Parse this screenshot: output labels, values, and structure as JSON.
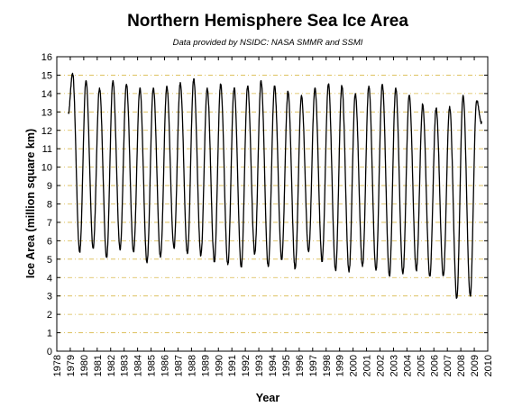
{
  "chart_data": {
    "type": "line",
    "title": "Northern Hemisphere Sea Ice Area",
    "subtitle": "Data provided by NSIDC: NASA SMMR and SSMI",
    "xlabel": "Year",
    "ylabel": "Ice Area (million square km)",
    "xlim": [
      1978,
      2010
    ],
    "ylim": [
      0,
      16
    ],
    "x_ticks": [
      1978,
      1979,
      1980,
      1981,
      1982,
      1983,
      1984,
      1985,
      1986,
      1987,
      1988,
      1989,
      1990,
      1991,
      1992,
      1993,
      1994,
      1995,
      1996,
      1997,
      1998,
      1999,
      2000,
      2001,
      2002,
      2003,
      2004,
      2005,
      2006,
      2007,
      2008,
      2009,
      2010
    ],
    "y_ticks": [
      0,
      1,
      2,
      3,
      4,
      5,
      6,
      7,
      8,
      9,
      10,
      11,
      12,
      13,
      14,
      15,
      16
    ],
    "grid": true,
    "line_color": "#000000",
    "grid_color": "#d9b94a",
    "series": [
      {
        "x_start": 1978.85,
        "y_start": 12.9,
        "annual_max": [
          [
            1979.17,
            15.1
          ],
          [
            1980.17,
            14.7
          ],
          [
            1981.17,
            14.3
          ],
          [
            1982.17,
            14.7
          ],
          [
            1983.17,
            14.5
          ],
          [
            1984.17,
            14.3
          ],
          [
            1985.17,
            14.3
          ],
          [
            1986.17,
            14.4
          ],
          [
            1987.17,
            14.6
          ],
          [
            1988.17,
            14.8
          ],
          [
            1989.17,
            14.3
          ],
          [
            1990.17,
            14.5
          ],
          [
            1991.17,
            14.3
          ],
          [
            1992.17,
            14.4
          ],
          [
            1993.17,
            14.7
          ],
          [
            1994.17,
            14.4
          ],
          [
            1995.17,
            14.1
          ],
          [
            1996.17,
            13.9
          ],
          [
            1997.17,
            14.3
          ],
          [
            1998.17,
            14.5
          ],
          [
            1999.17,
            14.4
          ],
          [
            2000.17,
            14.0
          ],
          [
            2001.17,
            14.4
          ],
          [
            2002.17,
            14.5
          ],
          [
            2003.17,
            14.3
          ],
          [
            2004.17,
            13.9
          ],
          [
            2005.17,
            13.4
          ],
          [
            2006.17,
            13.2
          ],
          [
            2007.17,
            13.3
          ],
          [
            2008.17,
            13.9
          ],
          [
            2009.17,
            13.6
          ]
        ],
        "annual_min": [
          [
            1979.7,
            5.4
          ],
          [
            1980.7,
            5.6
          ],
          [
            1981.7,
            5.1
          ],
          [
            1982.7,
            5.5
          ],
          [
            1983.7,
            5.4
          ],
          [
            1984.7,
            4.8
          ],
          [
            1985.7,
            5.1
          ],
          [
            1986.7,
            5.6
          ],
          [
            1987.7,
            5.3
          ],
          [
            1988.7,
            5.2
          ],
          [
            1989.7,
            4.9
          ],
          [
            1990.7,
            4.7
          ],
          [
            1991.7,
            4.6
          ],
          [
            1992.7,
            5.3
          ],
          [
            1993.7,
            4.6
          ],
          [
            1994.7,
            5.0
          ],
          [
            1995.7,
            4.5
          ],
          [
            1996.7,
            5.4
          ],
          [
            1997.7,
            4.9
          ],
          [
            1998.7,
            4.4
          ],
          [
            1999.7,
            4.3
          ],
          [
            2000.7,
            4.6
          ],
          [
            2001.7,
            4.4
          ],
          [
            2002.7,
            4.1
          ],
          [
            2003.7,
            4.2
          ],
          [
            2004.7,
            4.4
          ],
          [
            2005.7,
            4.1
          ],
          [
            2006.7,
            4.1
          ],
          [
            2007.7,
            2.9
          ],
          [
            2008.7,
            3.0
          ]
        ],
        "x_end": 2009.55,
        "y_end": 12.4
      }
    ]
  }
}
